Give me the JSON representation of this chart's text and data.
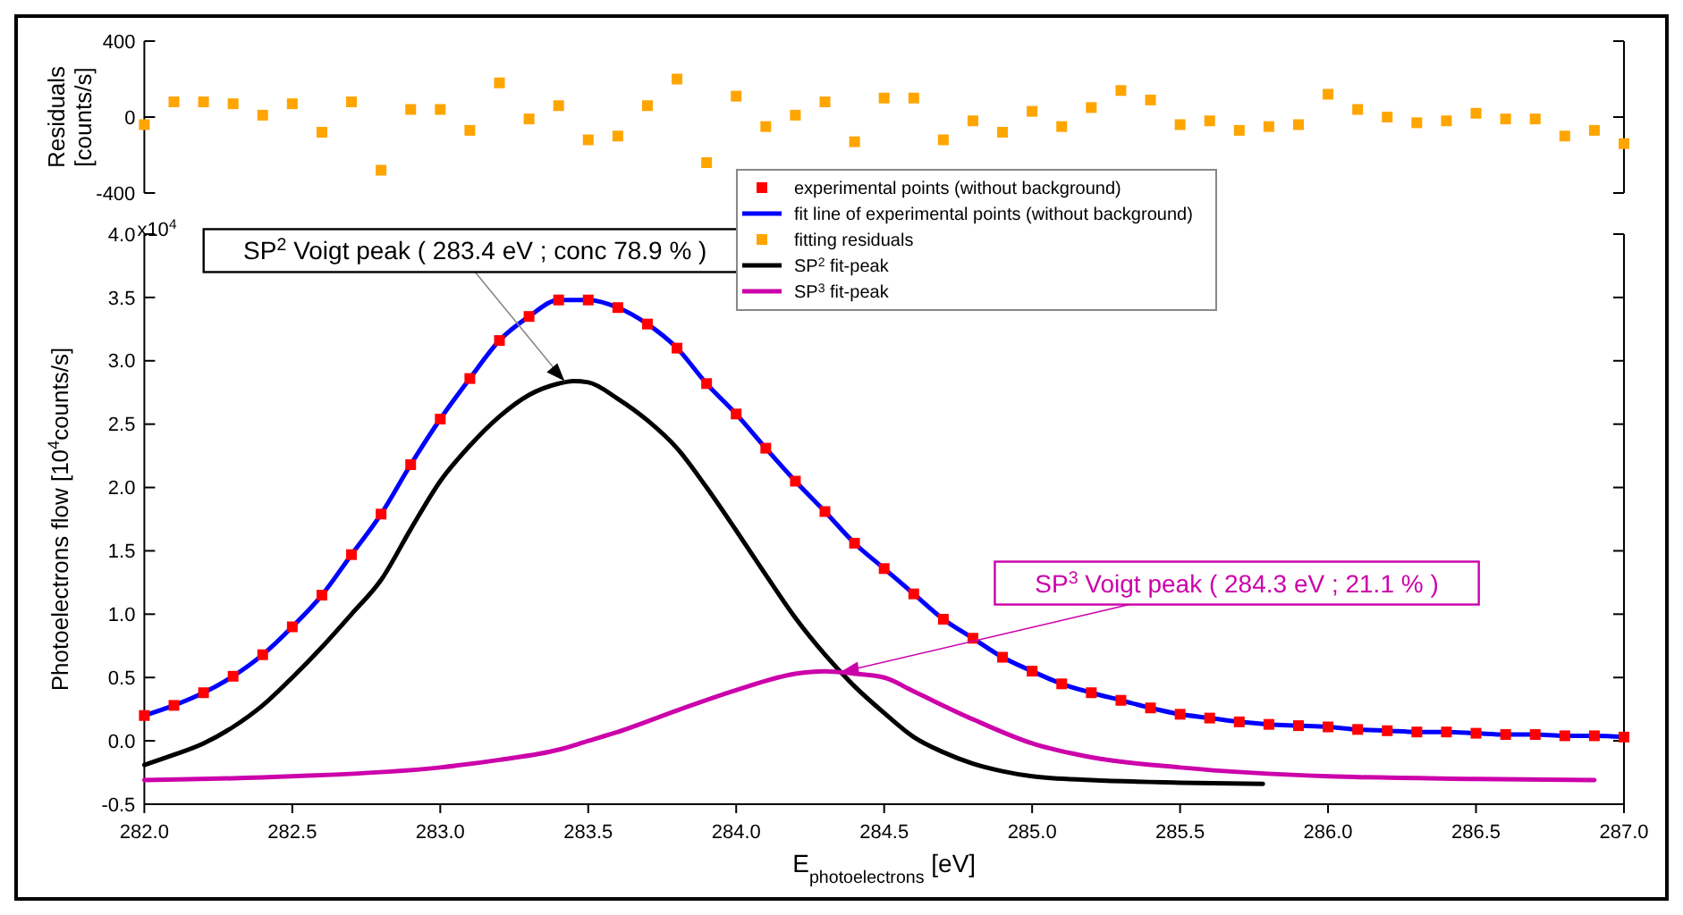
{
  "chart_data": [
    {
      "type": "scatter",
      "ylabel": "Residuals\n[counts/s]",
      "marker": "square",
      "legend": "bottom",
      "tick_labels": "y",
      "xlim": [
        282,
        287
      ],
      "ylim": [
        -400,
        400
      ],
      "yticks": [
        -400,
        0,
        400
      ],
      "x": [
        282.0,
        282.1,
        282.2,
        282.3,
        282.4,
        282.5,
        282.6,
        282.7,
        282.8,
        282.9,
        283.0,
        283.1,
        283.2,
        283.3,
        283.4,
        283.5,
        283.6,
        283.7,
        283.8,
        283.9,
        284.0,
        284.1,
        284.2,
        284.3,
        284.4,
        284.5,
        284.6,
        284.7,
        284.8,
        284.9,
        285.0,
        285.1,
        285.2,
        285.3,
        285.4,
        285.5,
        285.6,
        285.7,
        285.8,
        285.9,
        286.0,
        286.1,
        286.2,
        286.3,
        286.4,
        286.5,
        286.6,
        286.7,
        286.8,
        286.9,
        287.0
      ],
      "series": [
        {
          "name": "fitting residuals",
          "color": "#ffa500",
          "values": [
            -40,
            80,
            80,
            70,
            10,
            70,
            -80,
            80,
            -280,
            40,
            40,
            -70,
            180,
            -10,
            60,
            -120,
            -100,
            60,
            200,
            -240,
            110,
            -50,
            10,
            80,
            -130,
            100,
            100,
            -120,
            -20,
            -80,
            30,
            -50,
            50,
            140,
            90,
            -40,
            -20,
            -70,
            -50,
            -40,
            120,
            40,
            0,
            -30,
            -20,
            20,
            -10,
            -10,
            -100,
            -70,
            -140
          ]
        }
      ]
    },
    {
      "type": "line",
      "xlabel": "E$_{photoelectrons}$ [eV]",
      "ylabel": "Photoelectrons flow [10$^{4}$counts/s]",
      "legend": "top",
      "grid": false,
      "xlim": [
        282,
        287
      ],
      "ylim": [
        -0.5,
        4.0
      ],
      "xticks": [
        {
          "value": 282,
          "label": "282.0"
        },
        282.5,
        {
          "value": 283,
          "label": "283.0"
        },
        283.5,
        {
          "value": 284,
          "label": "284.0"
        },
        284.5,
        {
          "value": 285,
          "label": "285.0"
        },
        285.5,
        {
          "value": 286,
          "label": "286.0"
        },
        286.5,
        {
          "value": 287,
          "label": "287.0"
        }
      ],
      "yticks": [
        -0.5,
        {
          "value": 0,
          "label": "0.0"
        },
        0.5,
        {
          "value": 1,
          "label": "1.0"
        },
        1.5,
        {
          "value": 2,
          "label": "2.0"
        },
        2.5,
        {
          "value": 3,
          "label": "3.0"
        },
        3.5,
        {
          "value": 4,
          "label": "4.0"
        }
      ],
      "annotations": [
        "x10$^{4}$",
        {
          "text": "SP$^{2}$ Voigt peak ( 283.4 eV ; conc 78.9 % )",
          "x": 283.42,
          "y": 2.84
        },
        {
          "text": "SP$^{3}$ Voigt peak ( 284.3 eV ; 21.1 % )",
          "x": 284.35,
          "y": 0.54
        }
      ],
      "x": [
        282.0,
        282.1,
        282.2,
        282.3,
        282.4,
        282.5,
        282.6,
        282.7,
        282.8,
        282.9,
        283.0,
        283.1,
        283.2,
        283.3,
        283.4,
        283.5,
        283.6,
        283.7,
        283.8,
        283.9,
        284.0,
        284.1,
        284.2,
        284.3,
        284.4,
        284.5,
        284.6,
        284.7,
        284.8,
        284.9,
        285.0,
        285.1,
        285.2,
        285.3,
        285.4,
        285.5,
        285.6,
        285.7,
        285.8,
        285.9,
        286.0,
        286.1,
        286.2,
        286.3,
        286.4,
        286.5,
        286.6,
        286.7,
        286.8,
        286.9,
        287.0
      ],
      "series": [
        {
          "name": "experimental points (without background)",
          "type": "scatter",
          "marker": "square",
          "color": "#ff0000",
          "values": [
            0.2,
            0.28,
            0.38,
            0.51,
            0.68,
            0.9,
            1.15,
            1.47,
            1.79,
            2.18,
            2.54,
            2.86,
            3.16,
            3.35,
            3.48,
            3.48,
            3.42,
            3.29,
            3.1,
            2.82,
            2.58,
            2.31,
            2.05,
            1.81,
            1.56,
            1.36,
            1.16,
            0.96,
            0.81,
            0.66,
            0.55,
            0.45,
            0.38,
            0.32,
            0.26,
            0.21,
            0.18,
            0.15,
            0.13,
            0.12,
            0.11,
            0.09,
            0.08,
            0.07,
            0.07,
            0.06,
            0.05,
            0.05,
            0.04,
            0.04,
            0.03
          ]
        },
        {
          "name": "fit line of experimental points (without background)",
          "color": "#0000ff",
          "values": [
            0.2,
            0.28,
            0.38,
            0.51,
            0.68,
            0.9,
            1.15,
            1.47,
            1.79,
            2.18,
            2.54,
            2.86,
            3.16,
            3.35,
            3.48,
            3.48,
            3.42,
            3.29,
            3.1,
            2.82,
            2.58,
            2.31,
            2.05,
            1.81,
            1.56,
            1.36,
            1.16,
            0.96,
            0.81,
            0.66,
            0.55,
            0.45,
            0.38,
            0.32,
            0.26,
            0.21,
            0.18,
            0.15,
            0.13,
            0.12,
            0.11,
            0.09,
            0.08,
            0.07,
            0.07,
            0.06,
            0.05,
            0.05,
            0.04,
            0.04,
            0.03
          ]
        },
        {
          "name": "SP$^{2}$ fit-peak",
          "color": "#000000",
          "x": [
            282.0,
            282.1,
            282.2,
            282.3,
            282.4,
            282.5,
            282.6,
            282.7,
            282.8,
            282.9,
            283.0,
            283.1,
            283.2,
            283.3,
            283.4,
            283.45,
            283.5,
            283.6,
            283.7,
            283.8,
            283.9,
            284.0,
            284.1,
            284.2,
            284.3,
            284.4,
            284.5,
            284.6,
            284.7,
            284.8,
            284.9,
            285.0,
            285.2,
            285.5,
            285.78
          ],
          "values": [
            -0.19,
            -0.11,
            -0.02,
            0.11,
            0.28,
            0.5,
            0.74,
            1.0,
            1.27,
            1.67,
            2.05,
            2.33,
            2.56,
            2.73,
            2.82,
            2.84,
            2.83,
            2.7,
            2.53,
            2.31,
            2.0,
            1.66,
            1.31,
            0.97,
            0.68,
            0.43,
            0.22,
            0.03,
            -0.09,
            -0.18,
            -0.24,
            -0.28,
            -0.31,
            -0.33,
            -0.34
          ]
        },
        {
          "name": "SP$^{3}$ fit-peak",
          "color": "#cc00aa",
          "x": [
            282.0,
            282.5,
            283.0,
            283.2,
            283.4,
            283.5,
            283.6,
            283.8,
            284.0,
            284.2,
            284.3,
            284.4,
            284.5,
            284.6,
            284.8,
            285.0,
            285.2,
            285.5,
            286.0,
            286.5,
            286.9
          ],
          "values": [
            -0.31,
            -0.28,
            -0.21,
            -0.15,
            -0.07,
            0.0,
            0.07,
            0.24,
            0.4,
            0.53,
            0.55,
            0.53,
            0.5,
            0.39,
            0.17,
            -0.02,
            -0.13,
            -0.21,
            -0.28,
            -0.3,
            -0.31
          ]
        }
      ]
    }
  ]
}
